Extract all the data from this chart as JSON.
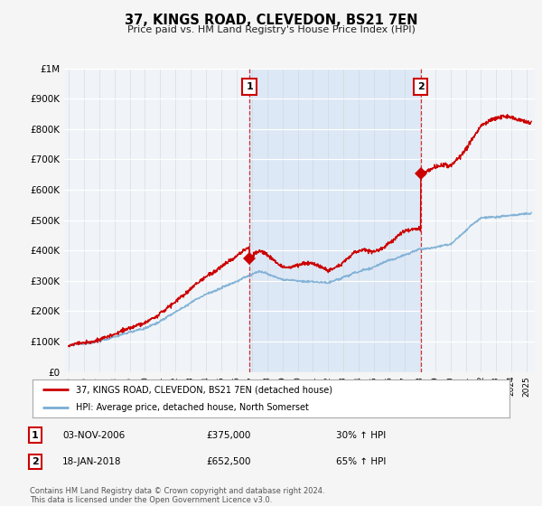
{
  "title": "37, KINGS ROAD, CLEVEDON, BS21 7EN",
  "subtitle": "Price paid vs. HM Land Registry's House Price Index (HPI)",
  "ylabel_ticks": [
    "£0",
    "£100K",
    "£200K",
    "£300K",
    "£400K",
    "£500K",
    "£600K",
    "£700K",
    "£800K",
    "£900K",
    "£1M"
  ],
  "ytick_values": [
    0,
    100000,
    200000,
    300000,
    400000,
    500000,
    600000,
    700000,
    800000,
    900000,
    1000000
  ],
  "ylim": [
    0,
    1000000
  ],
  "xlim_start": 1994.7,
  "xlim_end": 2025.5,
  "xtick_years": [
    1995,
    1996,
    1997,
    1998,
    1999,
    2000,
    2001,
    2002,
    2003,
    2004,
    2005,
    2006,
    2007,
    2008,
    2009,
    2010,
    2011,
    2012,
    2013,
    2014,
    2015,
    2016,
    2017,
    2018,
    2019,
    2020,
    2021,
    2022,
    2023,
    2024,
    2025
  ],
  "sale1_x": 2006.84,
  "sale1_y": 375000,
  "sale2_x": 2018.05,
  "sale2_y": 652500,
  "sale1_date": "03-NOV-2006",
  "sale1_price": "£375,000",
  "sale1_hpi": "30% ↑ HPI",
  "sale2_date": "18-JAN-2018",
  "sale2_price": "£652,500",
  "sale2_hpi": "65% ↑ HPI",
  "line_color_property": "#cc0000",
  "line_color_hpi": "#7aadd4",
  "highlight_color": "#dce8f5",
  "legend_property": "37, KINGS ROAD, CLEVEDON, BS21 7EN (detached house)",
  "legend_hpi": "HPI: Average price, detached house, North Somerset",
  "footnote": "Contains HM Land Registry data © Crown copyright and database right 2024.\nThis data is licensed under the Open Government Licence v3.0.",
  "background_color": "#f5f5f5",
  "plot_bg_color": "#f0f4f8"
}
